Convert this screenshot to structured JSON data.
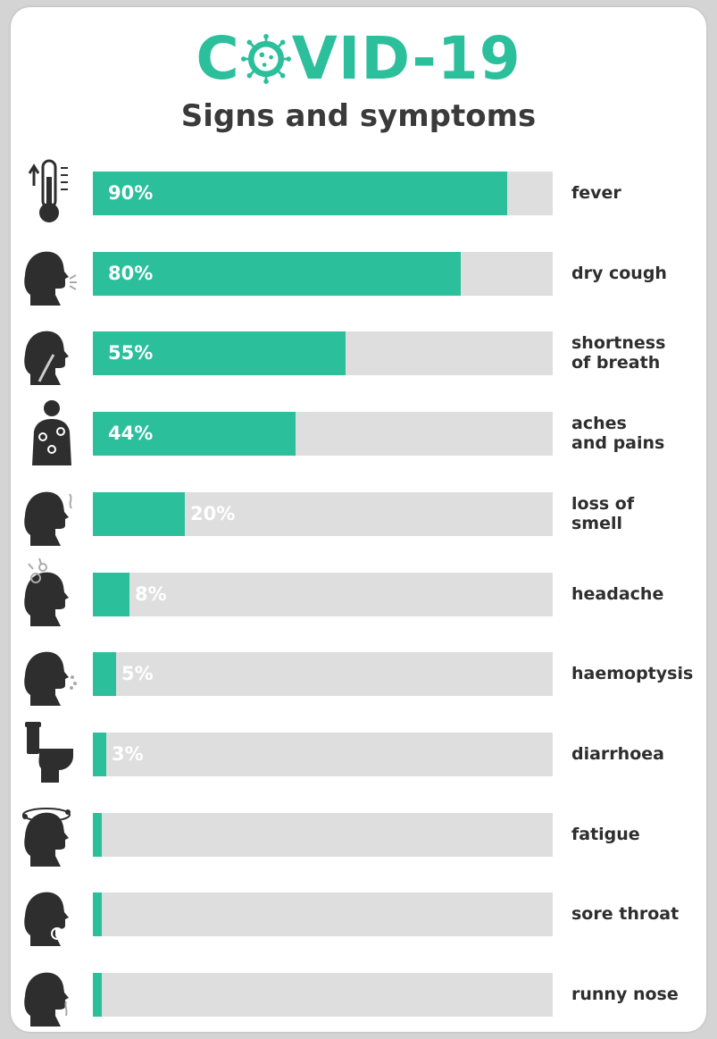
{
  "title_parts": {
    "before": "C",
    "after": "VID-19"
  },
  "subtitle": "Signs and symptoms",
  "colors": {
    "accent": "#2bbf9c",
    "track": "#dedede",
    "icon": "#2e2e2e"
  },
  "chart_data": {
    "type": "bar",
    "orientation": "horizontal",
    "title": "COVID-19",
    "subtitle": "Signs and symptoms",
    "xlim": [
      0,
      100
    ],
    "unit": "%",
    "categories": [
      "fever",
      "dry cough",
      "shortness of breath",
      "aches and pains",
      "loss of smell",
      "headache",
      "haemoptysis",
      "diarrhoea",
      "fatigue",
      "sore throat",
      "runny nose"
    ],
    "values": [
      90,
      80,
      55,
      44,
      20,
      8,
      5,
      3,
      2,
      2,
      2
    ],
    "value_labels": [
      "90%",
      "80%",
      "55%",
      "44%",
      "20%",
      "8%",
      "5%",
      "3%",
      "",
      "",
      ""
    ],
    "label_lines": [
      [
        "fever"
      ],
      [
        "dry cough"
      ],
      [
        "shortness",
        "of breath"
      ],
      [
        "aches",
        "and pains"
      ],
      [
        "loss of",
        "smell"
      ],
      [
        "headache"
      ],
      [
        "haemoptysis"
      ],
      [
        "diarrhoea"
      ],
      [
        "fatigue"
      ],
      [
        "sore throat"
      ],
      [
        "runny nose"
      ]
    ],
    "icons": [
      "thermometer-icon",
      "cough-head-icon",
      "breath-head-icon",
      "body-aches-icon",
      "smell-head-icon",
      "headache-head-icon",
      "haemoptysis-head-icon",
      "toilet-icon",
      "fatigue-head-icon",
      "sore-throat-head-icon",
      "runny-nose-head-icon"
    ],
    "grid": false,
    "legend": "none"
  }
}
